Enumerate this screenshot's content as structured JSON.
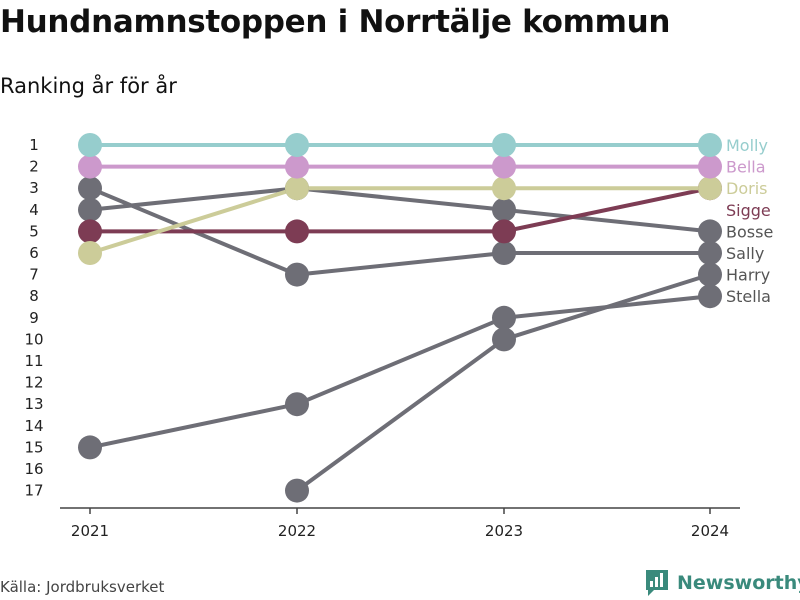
{
  "title": "Hundnamnstoppen i Norrtälje kommun",
  "subtitle": "Ranking år för år",
  "source": "Källa: Jordbruksverket",
  "brand": "Newsworthy",
  "colors": {
    "Molly": "#96cdcd",
    "Bella": "#cc99cc",
    "Doris": "#cccc99",
    "Sigge": "#7d3c54",
    "gray": "#6e6e76"
  },
  "chart_data": {
    "type": "line",
    "title": "Hundnamnstoppen i Norrtälje kommun",
    "subtitle": "Ranking år för år",
    "x": [
      "2021",
      "2022",
      "2023",
      "2024"
    ],
    "y_ticks": [
      "1",
      "2",
      "3",
      "4",
      "5",
      "6",
      "7",
      "8",
      "9",
      "10",
      "11",
      "12",
      "13",
      "14",
      "15",
      "16",
      "17"
    ],
    "ylim": [
      1,
      17
    ],
    "y_reversed": true,
    "series": [
      {
        "name": "Stella",
        "color": "gray",
        "values": [
          15,
          13,
          9,
          8
        ]
      },
      {
        "name": "Harry",
        "color": "gray",
        "values": [
          null,
          17,
          10,
          7
        ]
      },
      {
        "name": "Sally",
        "color": "gray",
        "values": [
          3,
          7,
          6,
          6
        ]
      },
      {
        "name": "Bosse",
        "color": "gray",
        "values": [
          4,
          3,
          4,
          5
        ]
      },
      {
        "name": "Sigge",
        "color": "Sigge",
        "values": [
          5,
          5,
          5,
          3
        ]
      },
      {
        "name": "Doris",
        "color": "Doris",
        "values": [
          6,
          3,
          3,
          3
        ]
      },
      {
        "name": "Bella",
        "color": "Bella",
        "values": [
          2,
          2,
          2,
          2
        ]
      },
      {
        "name": "Molly",
        "color": "Molly",
        "values": [
          1,
          1,
          1,
          1
        ]
      }
    ]
  }
}
